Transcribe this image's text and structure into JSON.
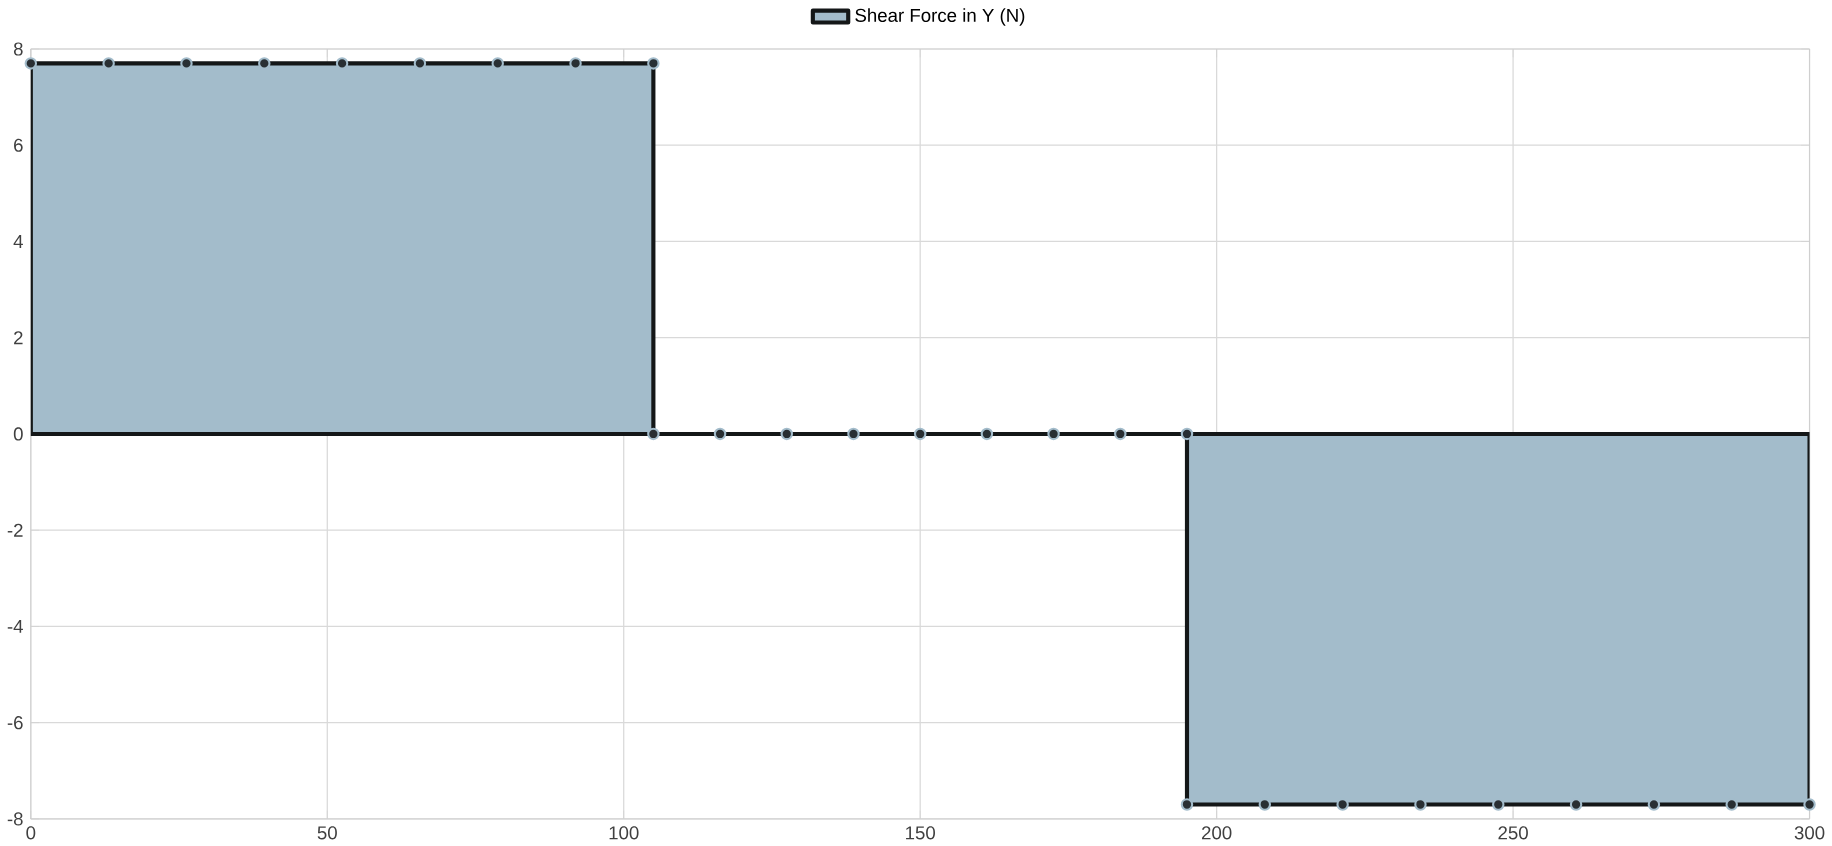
{
  "chart_data": {
    "type": "area",
    "x": [
      0,
      13.125,
      26.25,
      39.375,
      52.5,
      65.625,
      78.75,
      91.875,
      105,
      105,
      116.25,
      127.5,
      138.75,
      150,
      161.25,
      172.5,
      183.75,
      195,
      195,
      208.125,
      221.25,
      234.375,
      247.5,
      260.625,
      273.75,
      286.875,
      300
    ],
    "series": [
      {
        "name": "Shear Force in Y (N)",
        "color": "#a3bccb",
        "values": [
          7.7,
          7.7,
          7.7,
          7.7,
          7.7,
          7.7,
          7.7,
          7.7,
          7.7,
          0,
          0,
          0,
          0,
          0,
          0,
          0,
          0,
          0,
          -7.7,
          -7.7,
          -7.7,
          -7.7,
          -7.7,
          -7.7,
          -7.7,
          -7.7,
          -7.7
        ]
      }
    ],
    "xlim": [
      0,
      300
    ],
    "xticks": [
      0,
      50,
      100,
      150,
      200,
      250,
      300
    ],
    "ylim": [
      -8,
      8
    ],
    "yticks": [
      -8,
      -6,
      -4,
      -2,
      0,
      2,
      4,
      6,
      8
    ],
    "grid": true,
    "legend": "top",
    "marker": "circle"
  }
}
